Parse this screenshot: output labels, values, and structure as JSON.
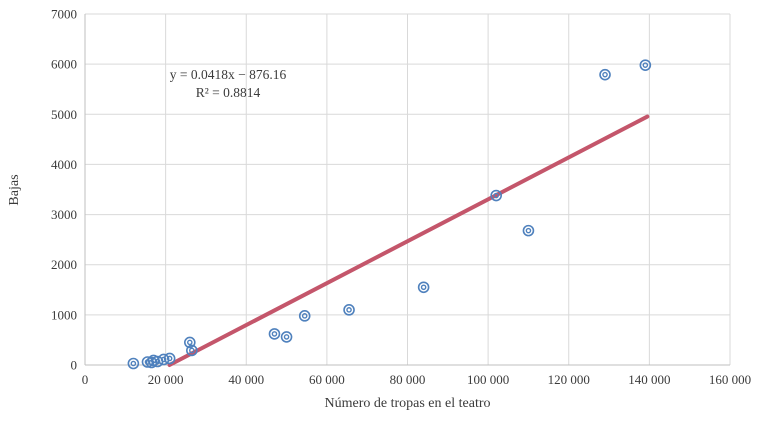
{
  "chart_data": {
    "type": "scatter",
    "title": "",
    "xlabel": "Número de tropas en el teatro",
    "ylabel": "Bajas",
    "equation": "y = 0.0418x − 876.16",
    "r_squared": "R² = 0.8814",
    "xlim": [
      0,
      160000
    ],
    "ylim": [
      0,
      7000
    ],
    "grid": true,
    "x_ticks": {
      "values": [
        0,
        20000,
        40000,
        60000,
        80000,
        100000,
        120000,
        140000,
        160000
      ],
      "labels": [
        "0",
        "20 000",
        "40 000",
        "60 000",
        "80 000",
        "100 000",
        "120 000",
        "140 000",
        "160 000"
      ]
    },
    "y_ticks": {
      "values": [
        0,
        1000,
        2000,
        3000,
        4000,
        5000,
        6000,
        7000
      ],
      "labels": [
        "0",
        "1000",
        "2000",
        "3000",
        "4000",
        "5000",
        "6000",
        "7000"
      ]
    },
    "points": [
      {
        "x": 12000,
        "y": 30
      },
      {
        "x": 15500,
        "y": 60
      },
      {
        "x": 16500,
        "y": 50
      },
      {
        "x": 17000,
        "y": 90
      },
      {
        "x": 18000,
        "y": 70
      },
      {
        "x": 19500,
        "y": 110
      },
      {
        "x": 21000,
        "y": 130
      },
      {
        "x": 26000,
        "y": 450
      },
      {
        "x": 26500,
        "y": 290
      },
      {
        "x": 47000,
        "y": 620
      },
      {
        "x": 50000,
        "y": 560
      },
      {
        "x": 54500,
        "y": 980
      },
      {
        "x": 65500,
        "y": 1100
      },
      {
        "x": 84000,
        "y": 1550
      },
      {
        "x": 102000,
        "y": 3380
      },
      {
        "x": 110000,
        "y": 2680
      },
      {
        "x": 129000,
        "y": 5790
      },
      {
        "x": 139000,
        "y": 5980
      }
    ],
    "trendline": {
      "slope": 0.0418,
      "intercept": -876.16,
      "x_start": 20960,
      "x_end": 139500,
      "color": "#c4566b"
    },
    "colors": {
      "marker": "#4f81bd",
      "grid": "#d9d9d9",
      "axis": "#bfbfbf",
      "text": "#3b3b3b"
    }
  }
}
